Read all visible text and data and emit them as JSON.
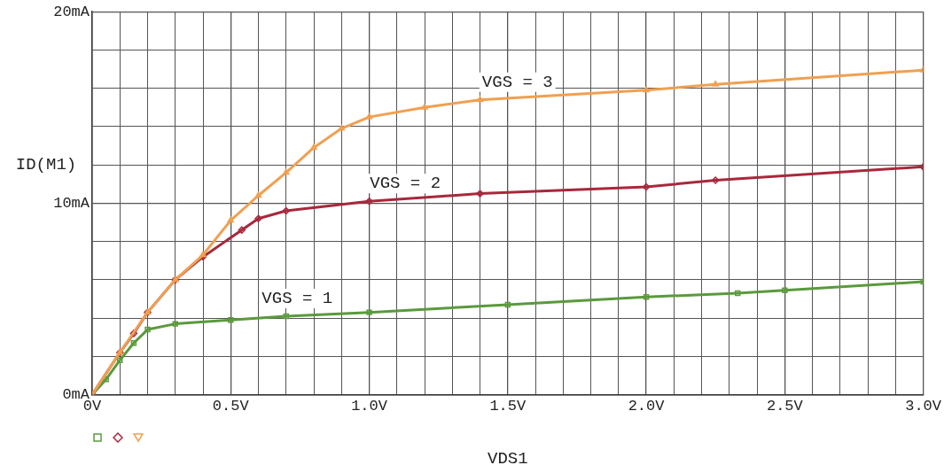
{
  "chart_data": {
    "type": "line",
    "xlabel": "VDS1",
    "ylabel": "ID(M1)",
    "xlim": [
      0,
      3
    ],
    "ylim": [
      0,
      20
    ],
    "xticks": [
      {
        "value": 0,
        "label": "0V"
      },
      {
        "value": 0.1,
        "label": null
      },
      {
        "value": 0.2,
        "label": null
      },
      {
        "value": 0.3,
        "label": null
      },
      {
        "value": 0.4,
        "label": null
      },
      {
        "value": 0.5,
        "label": "0.5V"
      },
      {
        "value": 0.6,
        "label": null
      },
      {
        "value": 0.7,
        "label": null
      },
      {
        "value": 0.8,
        "label": null
      },
      {
        "value": 0.9,
        "label": null
      },
      {
        "value": 1.0,
        "label": "1.0V"
      },
      {
        "value": 1.1,
        "label": null
      },
      {
        "value": 1.2,
        "label": null
      },
      {
        "value": 1.3,
        "label": null
      },
      {
        "value": 1.4,
        "label": null
      },
      {
        "value": 1.5,
        "label": "1.5V"
      },
      {
        "value": 1.6,
        "label": null
      },
      {
        "value": 1.7,
        "label": null
      },
      {
        "value": 1.8,
        "label": null
      },
      {
        "value": 1.9,
        "label": null
      },
      {
        "value": 2.0,
        "label": "2.0V"
      },
      {
        "value": 2.1,
        "label": null
      },
      {
        "value": 2.2,
        "label": null
      },
      {
        "value": 2.3,
        "label": null
      },
      {
        "value": 2.4,
        "label": null
      },
      {
        "value": 2.5,
        "label": "2.5V"
      },
      {
        "value": 2.6,
        "label": null
      },
      {
        "value": 2.7,
        "label": null
      },
      {
        "value": 2.8,
        "label": null
      },
      {
        "value": 2.9,
        "label": null
      },
      {
        "value": 3.0,
        "label": "3.0V"
      }
    ],
    "yticks": [
      {
        "value": 0,
        "label": "0mA"
      },
      {
        "value": 2,
        "label": null
      },
      {
        "value": 4,
        "label": null
      },
      {
        "value": 6,
        "label": null
      },
      {
        "value": 8,
        "label": null
      },
      {
        "value": 10,
        "label": "10mA"
      },
      {
        "value": 12,
        "label": null
      },
      {
        "value": 14,
        "label": null
      },
      {
        "value": 16,
        "label": null
      },
      {
        "value": 18,
        "label": null
      },
      {
        "value": 20,
        "label": "20mA"
      }
    ],
    "grid": true,
    "line_style": "solid",
    "series": [
      {
        "name": "VGS = 1",
        "color": "#5a9a3c",
        "marker": "square",
        "x": [
          0,
          0.05,
          0.1,
          0.15,
          0.2,
          0.3,
          0.5,
          0.7,
          1.0,
          1.5,
          2.0,
          2.33,
          2.5,
          3.0
        ],
        "values": [
          0,
          0.8,
          1.8,
          2.7,
          3.4,
          3.7,
          3.9,
          4.1,
          4.3,
          4.7,
          5.1,
          5.3,
          5.45,
          5.9
        ]
      },
      {
        "name": "VGS = 2",
        "color": "#a8283c",
        "marker": "diamond",
        "x": [
          0,
          0.1,
          0.15,
          0.2,
          0.3,
          0.4,
          0.54,
          0.6,
          0.7,
          1.0,
          1.4,
          2.0,
          2.25,
          3.0
        ],
        "values": [
          0,
          2.2,
          3.2,
          4.3,
          6.0,
          7.2,
          8.6,
          9.2,
          9.6,
          10.1,
          10.5,
          10.85,
          11.2,
          11.9
        ]
      },
      {
        "name": "VGS = 3",
        "color": "#f0a050",
        "marker": "triangle",
        "x": [
          0,
          0.1,
          0.2,
          0.3,
          0.4,
          0.5,
          0.6,
          0.7,
          0.8,
          0.9,
          1.0,
          1.2,
          1.4,
          2.0,
          2.25,
          3.0
        ],
        "values": [
          0,
          2.2,
          4.3,
          6.0,
          7.3,
          9.1,
          10.4,
          11.6,
          12.9,
          13.9,
          14.5,
          15.0,
          15.4,
          15.9,
          16.2,
          16.95
        ]
      }
    ]
  }
}
